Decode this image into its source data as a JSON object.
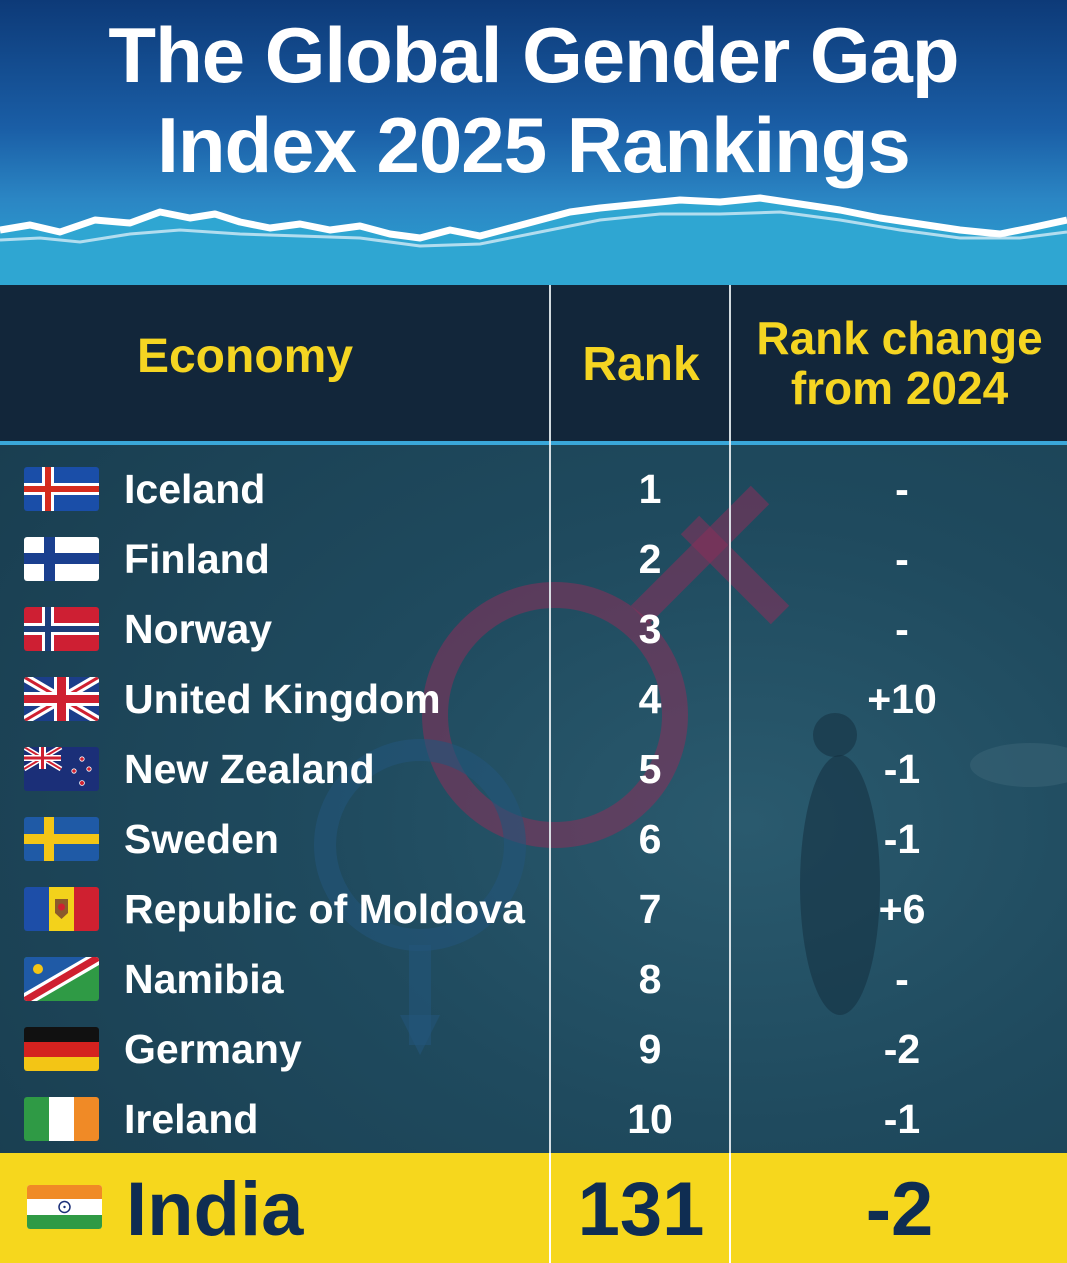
{
  "chart_data": {
    "type": "table",
    "title": "The Global Gender Gap Index 2025 Rankings",
    "title_lines": [
      "The Global Gender Gap",
      "Index 2025 Rankings"
    ],
    "columns": [
      "Economy",
      "Rank",
      "Rank change\nfrom 2024"
    ],
    "column_header_lines": {
      "economy": "Economy",
      "rank": "Rank",
      "change_line1": "Rank change",
      "change_line2": "from 2024"
    },
    "rows": [
      {
        "economy": "Iceland",
        "rank": "1",
        "change": "-",
        "flag": "iceland-flag"
      },
      {
        "economy": "Finland",
        "rank": "2",
        "change": "-",
        "flag": "finland-flag"
      },
      {
        "economy": "Norway",
        "rank": "3",
        "change": "-",
        "flag": "norway-flag"
      },
      {
        "economy": "United Kingdom",
        "rank": "4",
        "change": "+10",
        "flag": "uk-flag"
      },
      {
        "economy": "New Zealand",
        "rank": "5",
        "change": "-1",
        "flag": "new-zealand-flag"
      },
      {
        "economy": "Sweden",
        "rank": "6",
        "change": "-1",
        "flag": "sweden-flag"
      },
      {
        "economy": "Republic of Moldova",
        "rank": "7",
        "change": "+6",
        "flag": "moldova-flag"
      },
      {
        "economy": "Namibia",
        "rank": "8",
        "change": "-",
        "flag": "namibia-flag"
      },
      {
        "economy": "Germany",
        "rank": "9",
        "change": "-2",
        "flag": "germany-flag"
      },
      {
        "economy": "Ireland",
        "rank": "10",
        "change": "-1",
        "flag": "ireland-flag"
      }
    ],
    "highlight": {
      "economy": "India",
      "rank": "131",
      "change": "-2",
      "flag": "india-flag"
    }
  },
  "colors": {
    "header_text": "#f5d522",
    "highlight_bg": "#f6d71d",
    "highlight_text": "#0f2d52",
    "row_text": "#ffffff"
  }
}
